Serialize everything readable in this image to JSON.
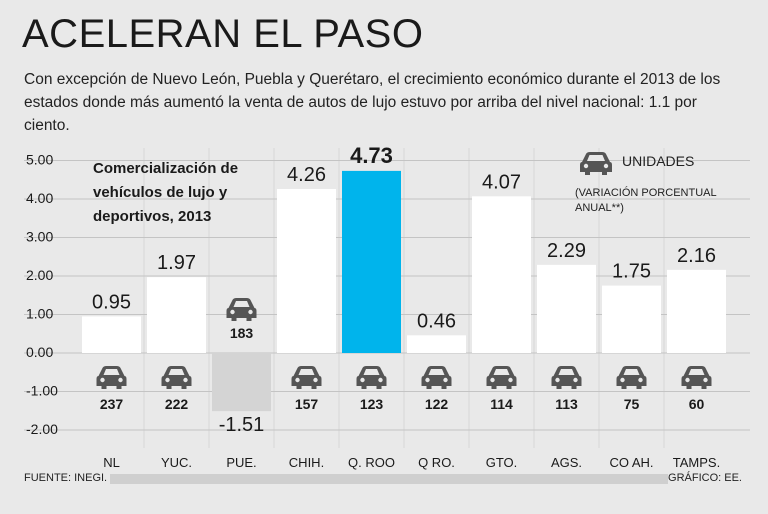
{
  "headline": "ACELERAN EL PASO",
  "intro": "Con excepción de Nuevo León, Puebla y Querétaro, el crecimiento económico durante el 2013 de los estados donde más aumentó la venta de autos de lujo estuvo por arriba del nivel nacional: 1.1 por ciento.",
  "subtitle": "Comercialización de vehículos de lujo y deportivos, 2013",
  "legend": {
    "label": "UNIDADES",
    "note": "(VARIACIÓN PORCENTUAL ANUAL**)",
    "icon": "car-icon"
  },
  "source": "FUENTE: INEGI.",
  "credit": "GRÁFICO: EE.",
  "colors": {
    "bar": "#ffffff",
    "highlight": "#00b4ec",
    "negative": "#d4d4d4",
    "grid": "#c4c4c4",
    "icon": "#555555"
  },
  "chart_data": {
    "type": "bar",
    "title": "Comercialización de vehículos de lujo y deportivos, 2013",
    "categories": [
      "NL",
      "YUC.",
      "PUE.",
      "CHIH.",
      "Q. ROO",
      "Q RO.",
      "GTO.",
      "AGS.",
      "CO AH.",
      "TAMPS."
    ],
    "values": [
      0.95,
      1.97,
      -1.51,
      4.26,
      4.73,
      0.46,
      4.07,
      2.29,
      1.75,
      2.16
    ],
    "value_labels": [
      "0.95",
      "1.97",
      "-1.51",
      "4.26",
      "4.73",
      "0.46",
      "4.07",
      "2.29",
      "1.75",
      "2.16"
    ],
    "units": [
      "237",
      "222",
      "183",
      "157",
      "123",
      "122",
      "114",
      "113",
      "75",
      "60"
    ],
    "highlight_index": 4,
    "yticks": [
      "5.00",
      "4.00",
      "3.00",
      "2.00",
      "1.00",
      "0.00",
      "-1.00",
      "-2.00"
    ],
    "ytick_values": [
      5,
      4,
      3,
      2,
      1,
      0,
      -1,
      -2
    ],
    "ylim": [
      -2,
      5
    ],
    "xlabel": "",
    "ylabel": "Variación porcentual anual"
  }
}
